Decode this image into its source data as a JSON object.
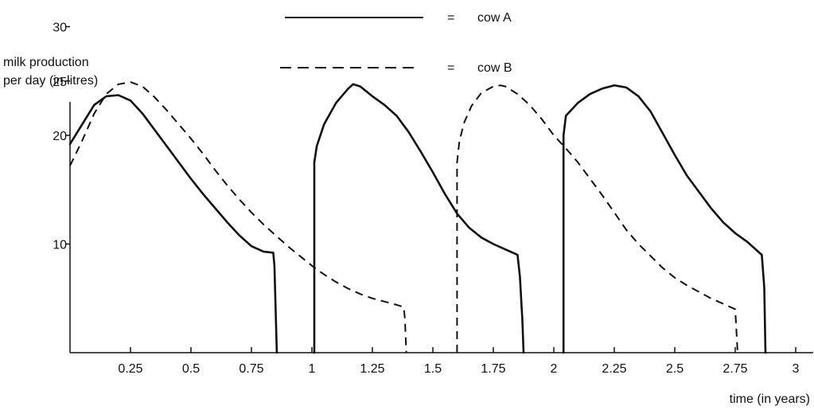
{
  "chart_data": {
    "type": "line",
    "xlabel": "time (in years)",
    "ylabel_line1": "milk production",
    "ylabel_line2": "per day (in litres)",
    "xlim": [
      0,
      3.05
    ],
    "ylim": [
      0,
      33
    ],
    "xticks": [
      "0.25",
      "0.5",
      "0.75",
      "1",
      "1.25",
      "1.5",
      "1.75",
      "2",
      "2.25",
      "2.5",
      "2.75",
      "3"
    ],
    "yticks": [
      "10",
      "20",
      "25",
      "30"
    ],
    "legend": {
      "placement": "top-center",
      "equals": "=",
      "items": [
        {
          "name": "cow A",
          "style": "solid"
        },
        {
          "name": "cow B",
          "style": "dashed"
        }
      ]
    },
    "series": [
      {
        "name": "cow A",
        "style": "solid",
        "segments": [
          [
            [
              0,
              19.2
            ],
            [
              0.05,
              21
            ],
            [
              0.1,
              22.8
            ],
            [
              0.15,
              23.6
            ],
            [
              0.2,
              23.7
            ],
            [
              0.25,
              23.2
            ],
            [
              0.3,
              22
            ],
            [
              0.35,
              20.5
            ],
            [
              0.4,
              19
            ],
            [
              0.45,
              17.5
            ],
            [
              0.5,
              16
            ],
            [
              0.55,
              14.6
            ],
            [
              0.6,
              13.3
            ],
            [
              0.65,
              12
            ],
            [
              0.7,
              10.8
            ],
            [
              0.75,
              9.8
            ],
            [
              0.8,
              9.3
            ],
            [
              0.84,
              9.2
            ],
            [
              0.845,
              8
            ],
            [
              0.85,
              4
            ],
            [
              0.855,
              0
            ]
          ],
          [
            [
              1.01,
              0
            ],
            [
              1.01,
              17.5
            ],
            [
              1.02,
              19
            ],
            [
              1.05,
              21
            ],
            [
              1.1,
              23
            ],
            [
              1.15,
              24.3
            ],
            [
              1.17,
              24.7
            ],
            [
              1.2,
              24.5
            ],
            [
              1.25,
              23.6
            ],
            [
              1.3,
              22.8
            ],
            [
              1.35,
              21.8
            ],
            [
              1.4,
              20.3
            ],
            [
              1.45,
              18.5
            ],
            [
              1.5,
              16.6
            ],
            [
              1.55,
              14.6
            ],
            [
              1.6,
              12.8
            ],
            [
              1.65,
              11.5
            ],
            [
              1.7,
              10.6
            ],
            [
              1.75,
              10
            ],
            [
              1.8,
              9.5
            ],
            [
              1.85,
              9
            ],
            [
              1.86,
              7
            ],
            [
              1.87,
              3
            ],
            [
              1.875,
              0
            ]
          ],
          [
            [
              2.04,
              0
            ],
            [
              2.04,
              20
            ],
            [
              2.05,
              21.8
            ],
            [
              2.1,
              23
            ],
            [
              2.15,
              23.8
            ],
            [
              2.2,
              24.3
            ],
            [
              2.25,
              24.6
            ],
            [
              2.3,
              24.4
            ],
            [
              2.35,
              23.6
            ],
            [
              2.4,
              22.2
            ],
            [
              2.45,
              20.2
            ],
            [
              2.5,
              18.2
            ],
            [
              2.55,
              16.3
            ],
            [
              2.6,
              14.8
            ],
            [
              2.65,
              13.3
            ],
            [
              2.7,
              12
            ],
            [
              2.75,
              11
            ],
            [
              2.8,
              10.2
            ],
            [
              2.83,
              9.6
            ],
            [
              2.86,
              9
            ],
            [
              2.87,
              6
            ],
            [
              2.875,
              0
            ]
          ]
        ]
      },
      {
        "name": "cow B",
        "style": "dashed",
        "segments": [
          [
            [
              0,
              17.2
            ],
            [
              0.05,
              19.5
            ],
            [
              0.1,
              22
            ],
            [
              0.15,
              23.8
            ],
            [
              0.2,
              24.7
            ],
            [
              0.25,
              24.9
            ],
            [
              0.3,
              24.5
            ],
            [
              0.35,
              23.5
            ],
            [
              0.4,
              22.3
            ],
            [
              0.45,
              21
            ],
            [
              0.5,
              19.7
            ],
            [
              0.55,
              18.3
            ],
            [
              0.6,
              16.8
            ],
            [
              0.65,
              15.4
            ],
            [
              0.7,
              14.1
            ],
            [
              0.75,
              12.9
            ],
            [
              0.8,
              11.8
            ],
            [
              0.85,
              10.8
            ],
            [
              0.9,
              9.8
            ],
            [
              0.95,
              8.9
            ],
            [
              1,
              8
            ],
            [
              1.05,
              7.2
            ],
            [
              1.1,
              6.5
            ],
            [
              1.15,
              5.9
            ],
            [
              1.2,
              5.4
            ],
            [
              1.25,
              5
            ],
            [
              1.3,
              4.7
            ],
            [
              1.35,
              4.4
            ],
            [
              1.38,
              4.2
            ],
            [
              1.385,
              3
            ],
            [
              1.39,
              0
            ]
          ],
          [
            [
              1.6,
              0
            ],
            [
              1.6,
              17.5
            ],
            [
              1.61,
              19.5
            ],
            [
              1.63,
              21.2
            ],
            [
              1.66,
              22.7
            ],
            [
              1.7,
              23.9
            ],
            [
              1.75,
              24.5
            ],
            [
              1.78,
              24.6
            ],
            [
              1.8,
              24.5
            ],
            [
              1.85,
              23.8
            ],
            [
              1.9,
              22.8
            ],
            [
              1.95,
              21.5
            ],
            [
              2,
              20
            ],
            [
              2.05,
              18.8
            ],
            [
              2.1,
              17.5
            ],
            [
              2.15,
              16
            ],
            [
              2.2,
              14.5
            ],
            [
              2.25,
              12.9
            ],
            [
              2.3,
              11.3
            ],
            [
              2.35,
              10
            ],
            [
              2.4,
              8.9
            ],
            [
              2.45,
              7.8
            ],
            [
              2.5,
              6.9
            ],
            [
              2.55,
              6.2
            ],
            [
              2.6,
              5.6
            ],
            [
              2.65,
              5
            ],
            [
              2.7,
              4.5
            ],
            [
              2.75,
              4
            ],
            [
              2.755,
              2
            ],
            [
              2.76,
              0
            ]
          ]
        ]
      }
    ]
  }
}
